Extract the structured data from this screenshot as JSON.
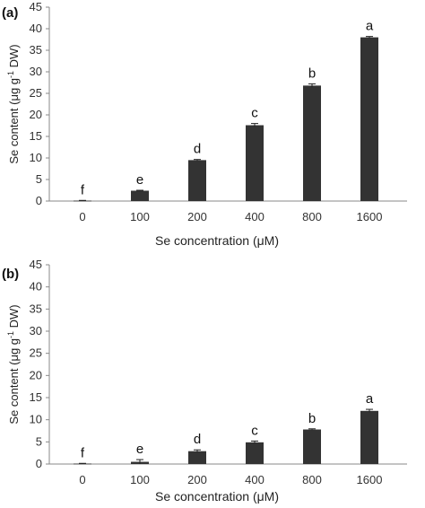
{
  "colors": {
    "bar": "#333333",
    "axis": "#888888"
  },
  "chart_data": [
    {
      "panel": "(a)",
      "type": "bar",
      "categories": [
        "0",
        "100",
        "200",
        "400",
        "800",
        "1600"
      ],
      "values": [
        0.1,
        2.4,
        9.5,
        17.6,
        26.8,
        38.0
      ],
      "errors": [
        0.05,
        0.1,
        0.15,
        0.4,
        0.4,
        0.2
      ],
      "significance": [
        "f",
        "e",
        "d",
        "c",
        "b",
        "a"
      ],
      "xlabel": "Se concentration (μM)",
      "ylabel": "Se content (μg g-1 DW)",
      "ylabel_main": "Se content (μg g",
      "ylabel_sup": "-1",
      "ylabel_tail": " DW)",
      "ylim": [
        0,
        45
      ],
      "yticks": [
        0,
        5,
        10,
        15,
        20,
        25,
        30,
        35,
        40,
        45
      ],
      "grid": false
    },
    {
      "panel": "(b)",
      "type": "bar",
      "categories": [
        "0",
        "100",
        "200",
        "400",
        "800",
        "1600"
      ],
      "values": [
        0.1,
        0.5,
        2.9,
        4.9,
        7.8,
        12.0
      ],
      "errors": [
        0.05,
        0.5,
        0.3,
        0.3,
        0.15,
        0.35
      ],
      "significance": [
        "f",
        "e",
        "d",
        "c",
        "b",
        "a"
      ],
      "xlabel": "Se concentration (μM)",
      "ylabel": "Se content (μg g-1 DW)",
      "ylabel_main": "Se content (μg g",
      "ylabel_sup": "-1",
      "ylabel_tail": " DW)",
      "ylim": [
        0,
        45
      ],
      "yticks": [
        0,
        5,
        10,
        15,
        20,
        25,
        30,
        35,
        40,
        45
      ],
      "grid": false
    }
  ]
}
